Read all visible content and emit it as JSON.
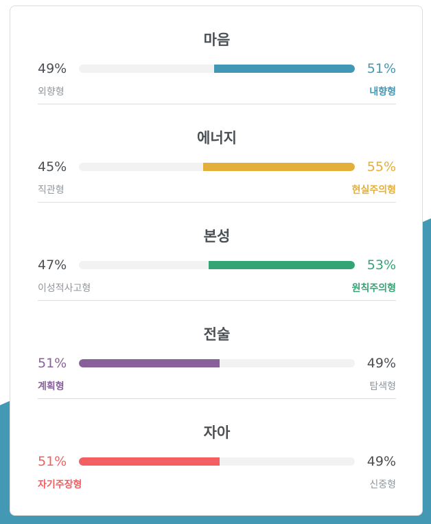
{
  "colors": {
    "background_shape": "#4399b4",
    "neutral_text": "#4a4f54",
    "muted_text": "#8f969c",
    "track": "#f2f2f2"
  },
  "traits": [
    {
      "title": "마음",
      "left": {
        "label": "외향형",
        "percent_text": "49%",
        "value": 49
      },
      "right": {
        "label": "내향형",
        "percent_text": "51%",
        "value": 51
      },
      "dominant": "right",
      "color": "#4298b4"
    },
    {
      "title": "에너지",
      "left": {
        "label": "직관형",
        "percent_text": "45%",
        "value": 45
      },
      "right": {
        "label": "현실주의형",
        "percent_text": "55%",
        "value": 55
      },
      "dominant": "right",
      "color": "#e4ae3a"
    },
    {
      "title": "본성",
      "left": {
        "label": "이성적사고형",
        "percent_text": "47%",
        "value": 47
      },
      "right": {
        "label": "원칙주의형",
        "percent_text": "53%",
        "value": 53
      },
      "dominant": "right",
      "color": "#33a474"
    },
    {
      "title": "전술",
      "left": {
        "label": "계획형",
        "percent_text": "51%",
        "value": 51
      },
      "right": {
        "label": "탐색형",
        "percent_text": "49%",
        "value": 49
      },
      "dominant": "left",
      "color": "#88619a"
    },
    {
      "title": "자아",
      "left": {
        "label": "자기주장형",
        "percent_text": "51%",
        "value": 51
      },
      "right": {
        "label": "신중형",
        "percent_text": "49%",
        "value": 49
      },
      "dominant": "left",
      "color": "#f25e62"
    }
  ]
}
